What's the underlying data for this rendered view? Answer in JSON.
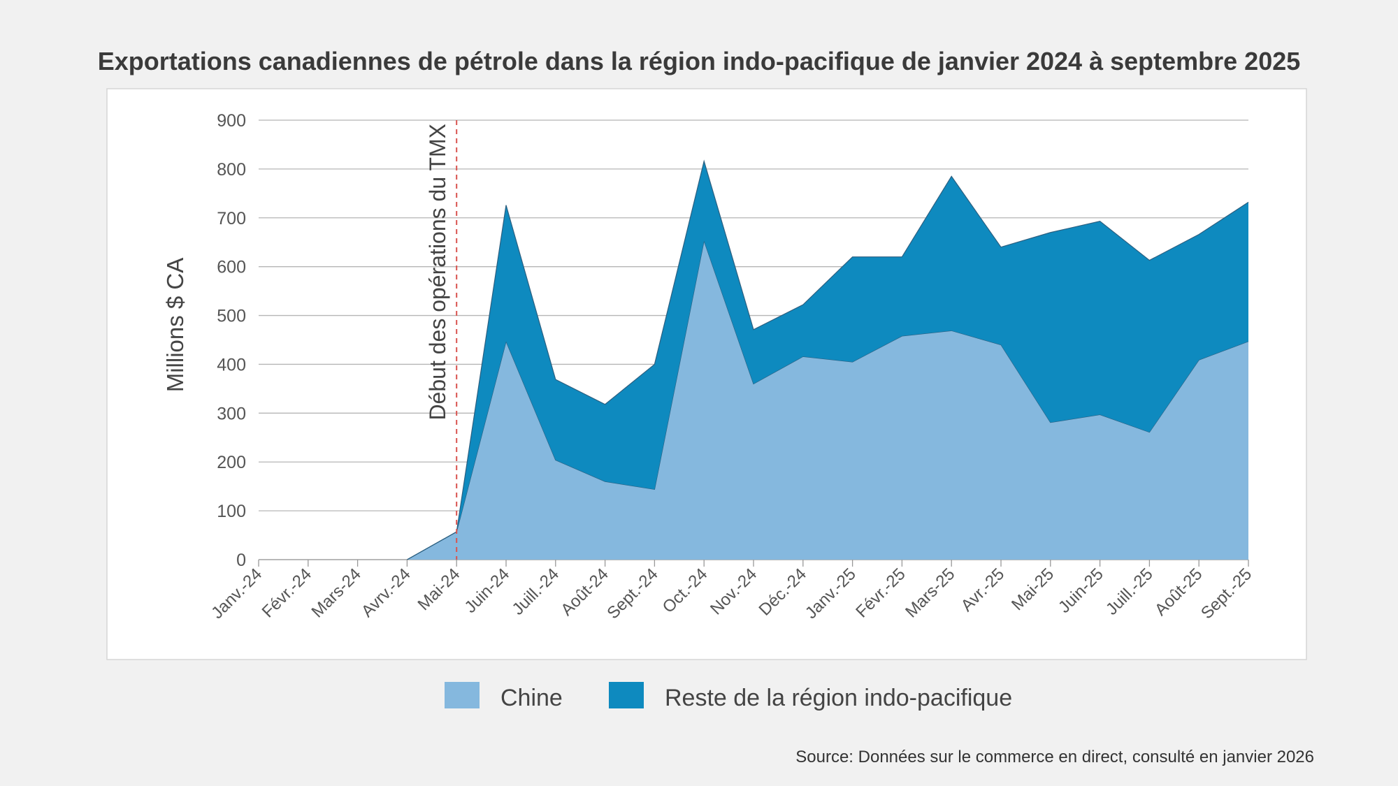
{
  "chart_data": {
    "type": "area",
    "stacked": true,
    "title": "Exportations canadiennes de pétrole dans la région indo-pacifique de janvier 2024 à septembre 2025",
    "xlabel": "",
    "ylabel": "Millions $ CA",
    "ylim": [
      0,
      900
    ],
    "yticks": [
      0,
      100,
      200,
      300,
      400,
      500,
      600,
      700,
      800,
      900
    ],
    "grid": true,
    "legend_position": "bottom",
    "categories": [
      "Janv.-24",
      "Févr.-24",
      "Mars-24",
      "Avrv.-24",
      "Mai-24",
      "Juin-24",
      "Juill.-24",
      "Août-24",
      "Sept.-24",
      "Oct.-24",
      "Nov.-24",
      "Déc.-24",
      "Janv.-25",
      "Févr.-25",
      "Mars-25",
      "Avr.-25",
      "Mai-25",
      "Juin-25",
      "Juill.-25",
      "Août-25",
      "Sept.-25"
    ],
    "series": [
      {
        "name": "Chine",
        "color": "#85b8de",
        "values": [
          null,
          null,
          null,
          0,
          57,
          447,
          204,
          160,
          144,
          653,
          360,
          416,
          405,
          458,
          469,
          440,
          281,
          297,
          261,
          409,
          447
        ]
      },
      {
        "name": "Reste de la région indo-pacifique",
        "color": "#0e8abf",
        "values": [
          null,
          null,
          null,
          0,
          0,
          279,
          165,
          158,
          256,
          163,
          111,
          106,
          215,
          162,
          316,
          200,
          389,
          396,
          352,
          257,
          285
        ]
      }
    ],
    "annotation": {
      "label": "Début des opérations du TMX",
      "category": "Mai-24",
      "color": "#d9534f"
    }
  },
  "source": "Source: Données sur le commerce en direct, consulté en janvier 2026"
}
